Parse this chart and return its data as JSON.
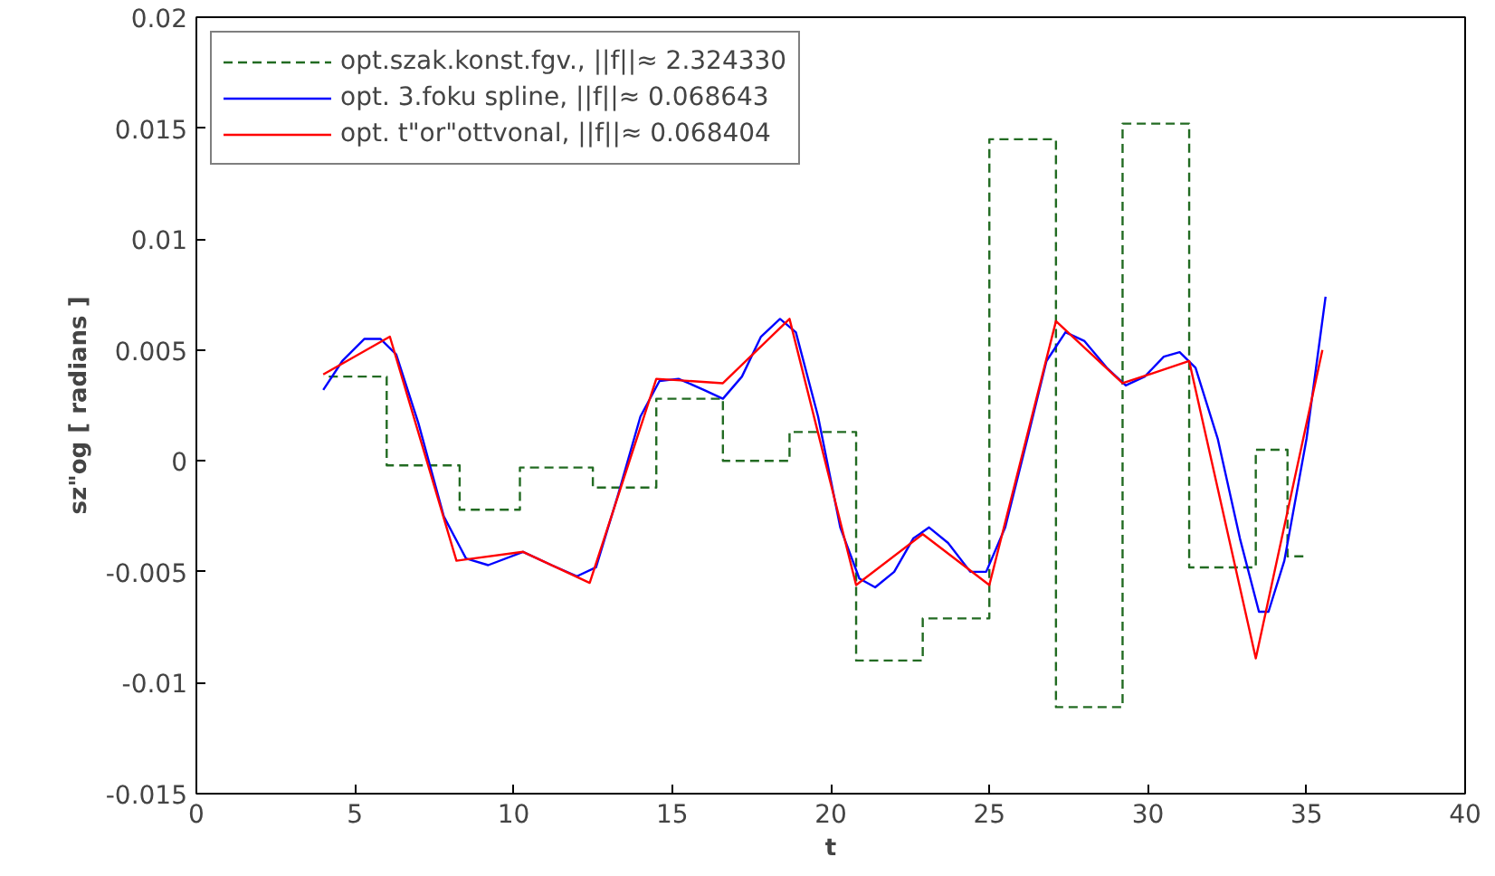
{
  "chart_data": {
    "type": "line",
    "xlabel": "t",
    "ylabel": "sz\"og [ radians ]",
    "xlim": [
      0,
      40
    ],
    "xticks": [
      0,
      5,
      10,
      15,
      20,
      25,
      30,
      35,
      40
    ],
    "ylim": [
      -0.015,
      0.02
    ],
    "yticks": [
      {
        "value": -0.015,
        "label": "-0.015"
      },
      {
        "value": -0.01,
        "label": "-0.01"
      },
      {
        "value": -0.005,
        "label": "-0.005"
      },
      {
        "value": 0,
        "label": "0"
      },
      {
        "value": 0.005,
        "label": "0.005"
      },
      {
        "value": 0.01,
        "label": "0.01"
      },
      {
        "value": 0.015,
        "label": "0.015"
      },
      {
        "value": 0.02,
        "label": "0.02"
      }
    ],
    "grid": false,
    "legend": "top left",
    "series": [
      {
        "name": "opt.szak.konst.fgv., ||f||≈ 2.324330",
        "type": "step",
        "line_style": "dashed",
        "color": "#226b22",
        "x": [
          4.0,
          6.0,
          8.3,
          10.2,
          12.5,
          14.5,
          16.6,
          18.7,
          20.8,
          22.9,
          25.0,
          27.1,
          29.2,
          31.3,
          33.4,
          34.4,
          34.9
        ],
        "values": [
          0.0038,
          -0.0002,
          -0.0022,
          -0.0003,
          -0.0012,
          0.0028,
          0.0,
          0.0013,
          -0.009,
          -0.0071,
          0.0145,
          -0.0111,
          0.0152,
          -0.0048,
          0.0005,
          -0.0043,
          -0.0043
        ]
      },
      {
        "name": "opt. 3.foku spline, ||f||≈ 0.068643",
        "line_style": "solid",
        "color": "#0000ff",
        "x": [
          4.0,
          4.6,
          5.3,
          5.8,
          6.3,
          7.0,
          7.8,
          8.5,
          9.2,
          10.3,
          11.2,
          12.0,
          12.6,
          13.3,
          14.0,
          14.6,
          15.2,
          16.0,
          16.6,
          17.2,
          17.8,
          18.4,
          18.9,
          19.6,
          20.3,
          20.9,
          21.4,
          22.0,
          22.6,
          23.1,
          23.7,
          24.4,
          24.9,
          25.5,
          26.2,
          26.8,
          27.4,
          28.0,
          28.7,
          29.3,
          29.9,
          30.5,
          31.0,
          31.5,
          32.2,
          32.9,
          33.5,
          33.8,
          34.3,
          35.0,
          35.6
        ],
        "values": [
          0.0032,
          0.0045,
          0.0055,
          0.0055,
          0.0048,
          0.0017,
          -0.0025,
          -0.0044,
          -0.0047,
          -0.0041,
          -0.0047,
          -0.0052,
          -0.0048,
          -0.0015,
          0.002,
          0.0036,
          0.0037,
          0.0032,
          0.0028,
          0.0038,
          0.0056,
          0.0064,
          0.0058,
          0.002,
          -0.003,
          -0.0053,
          -0.0057,
          -0.005,
          -0.0035,
          -0.003,
          -0.0037,
          -0.005,
          -0.005,
          -0.003,
          0.001,
          0.0045,
          0.0058,
          0.0054,
          0.0042,
          0.0034,
          0.0038,
          0.0047,
          0.0049,
          0.0042,
          0.001,
          -0.0035,
          -0.0068,
          -0.0068,
          -0.0045,
          0.001,
          0.0074
        ]
      },
      {
        "name": "opt. t\"or\"ottvonal, ||f||≈ 0.068404",
        "line_style": "solid",
        "color": "#ff0000",
        "x": [
          4.0,
          6.1,
          8.2,
          10.3,
          12.4,
          14.5,
          16.6,
          18.7,
          20.8,
          22.9,
          25.0,
          27.1,
          29.2,
          31.3,
          33.4,
          35.5
        ],
        "values": [
          0.0039,
          0.0056,
          -0.0045,
          -0.0041,
          -0.0055,
          0.0037,
          0.0035,
          0.0064,
          -0.0056,
          -0.0033,
          -0.0056,
          0.0063,
          0.0035,
          0.0045,
          -0.0089,
          0.005
        ]
      }
    ]
  }
}
